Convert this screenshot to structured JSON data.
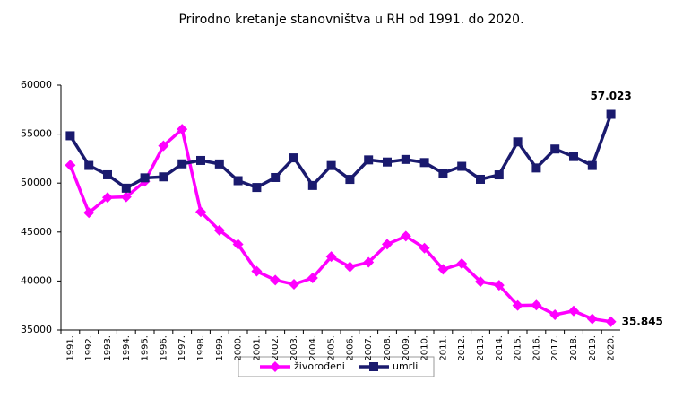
{
  "chart_data": {
    "type": "line",
    "title": "Prirodno kretanje stanovništva u RH od 1991. do 2020.",
    "categories": [
      "1991.",
      "1992.",
      "1993.",
      "1994.",
      "1995.",
      "1996.",
      "1997.",
      "1998.",
      "1999.",
      "2000.",
      "2001.",
      "2002.",
      "2003.",
      "2004.",
      "2005.",
      "2006.",
      "2007.",
      "2008.",
      "2009.",
      "2010.",
      "2011.",
      "2012.",
      "2013.",
      "2014.",
      "2015.",
      "2016.",
      "2017.",
      "2018.",
      "2019.",
      "2020."
    ],
    "series": [
      {
        "name": "živorođeni",
        "color": "#ff00ff",
        "marker": "diamond",
        "values": [
          51829,
          46970,
          48535,
          48584,
          50182,
          53811,
          55501,
          47068,
          45179,
          43746,
          40993,
          40094,
          39668,
          40307,
          42492,
          41446,
          41910,
          43753,
          44577,
          43361,
          41197,
          41771,
          39939,
          39566,
          37503,
          37537,
          36556,
          36945,
          36135,
          35845
        ],
        "value_labels": [
          null,
          null,
          null,
          null,
          null,
          null,
          null,
          null,
          null,
          null,
          null,
          null,
          null,
          null,
          null,
          null,
          null,
          null,
          null,
          null,
          null,
          null,
          null,
          null,
          null,
          null,
          null,
          null,
          null,
          "35.845"
        ]
      },
      {
        "name": "umrli",
        "color": "#1a1a6e",
        "marker": "square",
        "values": [
          54832,
          51800,
          50846,
          49482,
          50536,
          50636,
          51964,
          52311,
          51953,
          50246,
          49552,
          50569,
          52575,
          49756,
          51790,
          50378,
          52367,
          52151,
          52414,
          52096,
          51019,
          51710,
          50386,
          50839,
          54205,
          51542,
          53477,
          52706,
          51794,
          57023
        ],
        "value_labels": [
          null,
          null,
          null,
          null,
          null,
          null,
          null,
          null,
          null,
          null,
          null,
          null,
          null,
          null,
          null,
          null,
          null,
          null,
          null,
          null,
          null,
          null,
          null,
          null,
          null,
          null,
          null,
          null,
          null,
          "57.023"
        ]
      }
    ],
    "ylim": [
      35000,
      60000
    ],
    "yticks": [
      35000,
      40000,
      45000,
      50000,
      55000,
      60000
    ],
    "grid": false
  }
}
